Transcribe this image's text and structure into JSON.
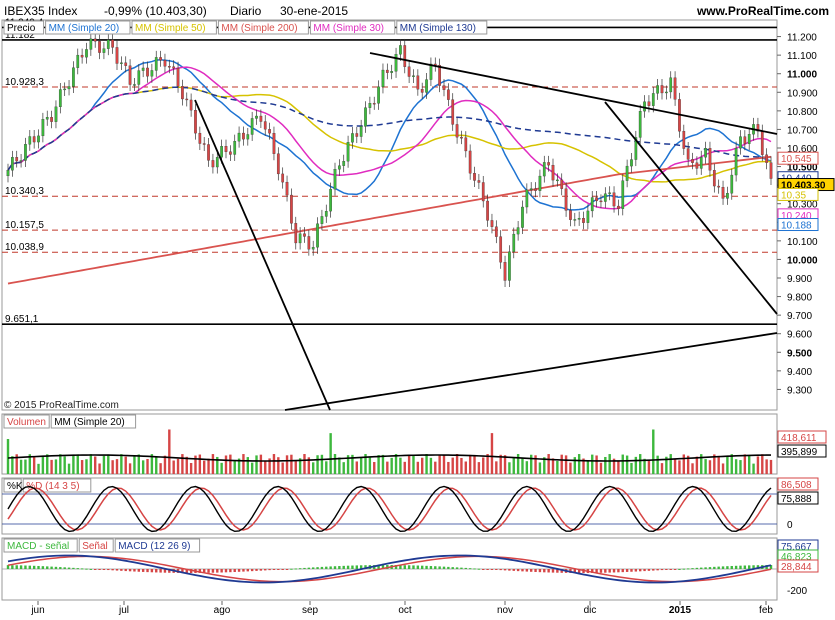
{
  "header": {
    "symbol": "IBEX35 Index",
    "change": "-0,99% (10.403,30)",
    "period": "Diario",
    "date": "30-ene-2015",
    "site": "www.ProRealTime.com"
  },
  "watermark": "© 2015 ProRealTime.com",
  "colors": {
    "sma20": "#1e73d2",
    "sma50": "#d6c200",
    "sma200": "#d9534f",
    "sma30": "#e02cc0",
    "sma130": "#1f3a93",
    "up": "#3db83d",
    "down": "#d64545",
    "trend": "#000000",
    "hline": "#c0392b"
  },
  "chart_data": [
    {
      "type": "candlestick",
      "panel": "price",
      "legend": [
        "Precio",
        "MM (Simple 20)",
        "MM (Simple 50)",
        "MM (Simple 200)",
        "MM (Simple 30)",
        "MM (Simple 130)"
      ],
      "ylim": [
        9200,
        11300
      ],
      "yticks": [
        "11.200",
        "11.100",
        "11.000",
        "10.900",
        "10.800",
        "10.700",
        "10.600",
        "10.500",
        "10.400",
        "10.300",
        "10.200",
        "10.100",
        "10.000",
        "9.900",
        "9.800",
        "9.700",
        "9.600",
        "9.500",
        "9.400",
        "9.300"
      ],
      "xlabels": [
        "jun",
        "jul",
        "ago",
        "sep",
        "oct",
        "nov",
        "dic",
        "2015",
        "feb"
      ],
      "hlines": [
        {
          "label": "11.249,4",
          "value": 11249.4,
          "style": "solid"
        },
        {
          "label": "11.182",
          "value": 11182,
          "style": "solid"
        },
        {
          "label": "10.928,3",
          "value": 10928.3,
          "style": "dashed"
        },
        {
          "label": "10.340,3",
          "value": 10340.3,
          "style": "dashed"
        },
        {
          "label": "10.157,5",
          "value": 10157.5,
          "style": "dashed"
        },
        {
          "label": "10.038,9",
          "value": 10038.9,
          "style": "dashed"
        },
        {
          "label": "9.651,1",
          "value": 9651.1,
          "style": "solid"
        }
      ],
      "value_tags": [
        {
          "label": "10.545",
          "value": 10545,
          "color": "#d9534f"
        },
        {
          "label": "10.440",
          "value": 10440,
          "color": "#1f3a93"
        },
        {
          "label": "10.403,30",
          "value": 10403.3,
          "color": "#000000"
        },
        {
          "label": "10.35",
          "value": 10350,
          "color": "#d6c200"
        },
        {
          "label": "10.240",
          "value": 10240,
          "color": "#e02cc0"
        },
        {
          "label": "10.188",
          "value": 10188,
          "color": "#1e73d2"
        }
      ]
    },
    {
      "type": "bar",
      "panel": "volume",
      "legend": [
        "Volumen",
        "MM (Simple 20)"
      ],
      "value_tags": [
        {
          "label": "418,611",
          "color": "#d64545"
        },
        {
          "label": "395,899",
          "color": "#000000"
        }
      ]
    },
    {
      "type": "line",
      "panel": "stochastic",
      "legend": [
        "%K",
        "%D (14 3 5)"
      ],
      "yticks": [
        "0"
      ],
      "value_tags": [
        {
          "label": "86,508",
          "color": "#d64545"
        },
        {
          "label": "75,888",
          "color": "#000000"
        }
      ]
    },
    {
      "type": "line",
      "panel": "macd",
      "legend": [
        "MACD - señal",
        "Señal",
        "MACD (12 26 9)"
      ],
      "yticks": [
        "-200"
      ],
      "value_tags": [
        {
          "label": "75,667",
          "color": "#1f3a93"
        },
        {
          "label": "46,823",
          "color": "#3db83d"
        },
        {
          "label": "28,844",
          "color": "#d64545"
        }
      ]
    }
  ]
}
